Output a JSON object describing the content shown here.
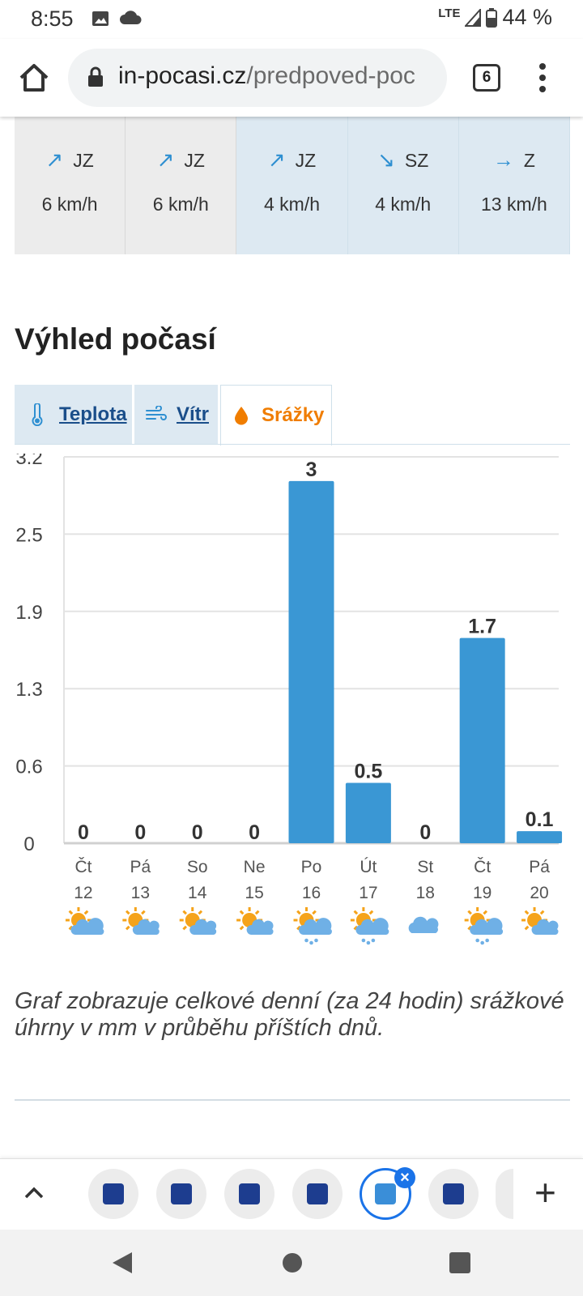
{
  "status_bar": {
    "time": "8:55",
    "network": "LTE",
    "battery": "44 %",
    "icons": [
      "image-icon",
      "cloud-icon",
      "signal-icon",
      "battery-icon"
    ]
  },
  "browser": {
    "url_domain": "in-pocasi.cz",
    "url_path": "/predpoved-poc",
    "tab_count": "6"
  },
  "wind": [
    {
      "arrow": "↗",
      "dir": "JZ",
      "speed": "6 km/h",
      "shade": "grey"
    },
    {
      "arrow": "↗",
      "dir": "JZ",
      "speed": "6 km/h",
      "shade": "grey"
    },
    {
      "arrow": "↗",
      "dir": "JZ",
      "speed": "4 km/h",
      "shade": "blue"
    },
    {
      "arrow": "↘",
      "dir": "SZ",
      "speed": "4 km/h",
      "shade": "blue"
    },
    {
      "arrow": "→",
      "dir": "Z",
      "speed": "13 km/h",
      "shade": "blue"
    }
  ],
  "section_title": "Výhled počasí",
  "tabs": {
    "temperature": "Teplota",
    "wind": "Vítr",
    "precip": "Srážky"
  },
  "chart_data": {
    "type": "bar",
    "title": "",
    "xlabel": "",
    "ylabel": "",
    "ylim": [
      0,
      3.2
    ],
    "yticks": [
      "0",
      "0.6",
      "1.3",
      "1.9",
      "2.5",
      "3.2"
    ],
    "grid": true,
    "bar_color": "#3a97d4",
    "categories": [
      {
        "day": "Čt",
        "date": "12",
        "weather": "partly-cloudy"
      },
      {
        "day": "Pá",
        "date": "13",
        "weather": "sunny-cloud"
      },
      {
        "day": "So",
        "date": "14",
        "weather": "sunny-cloud"
      },
      {
        "day": "Ne",
        "date": "15",
        "weather": "sunny-cloud"
      },
      {
        "day": "Po",
        "date": "16",
        "weather": "sun-rain"
      },
      {
        "day": "Út",
        "date": "17",
        "weather": "sun-rain"
      },
      {
        "day": "St",
        "date": "18",
        "weather": "cloudy"
      },
      {
        "day": "Čt",
        "date": "19",
        "weather": "sun-rain"
      },
      {
        "day": "Pá",
        "date": "20",
        "weather": "sunny-cloud"
      }
    ],
    "values": [
      0,
      0,
      0,
      0,
      3,
      0.5,
      0,
      1.7,
      0.1
    ],
    "value_labels": [
      "0",
      "0",
      "0",
      "0",
      "3",
      "0.5",
      "0",
      "1.7",
      "0.1"
    ]
  },
  "caption": "Graf zobrazuje celkové denní (za 24 hodin) srážkové úhrny v mm v průběhu příštích dnů."
}
